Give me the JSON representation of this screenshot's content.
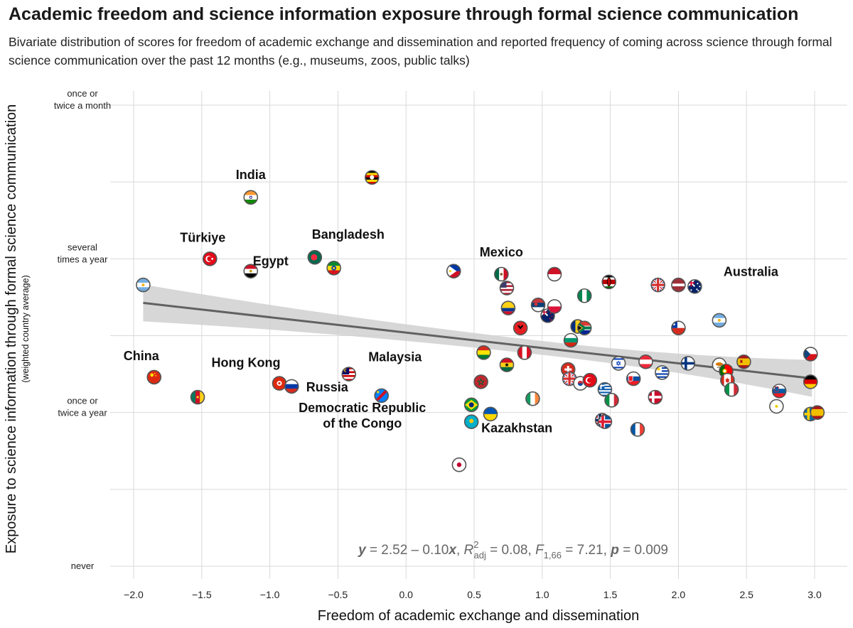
{
  "header": {
    "title": "Academic freedom and science information exposure through formal science communication",
    "subtitle": "Bivariate distribution of scores for freedom of academic exchange and dissemination and reported frequency of coming across science through formal science communication over the past 12 months (e.g., museums, zoos, public talks)"
  },
  "chart_data": {
    "type": "scatter",
    "title": "Academic freedom and science information exposure through formal science communication",
    "xlabel": "Freedom of academic exchange and dissemination",
    "ylabel": "Exposure to science information through formal science communication",
    "ylabel_sub": "(weighted country average)",
    "xlim": [
      -2.2,
      3.2
    ],
    "ylim": [
      0.9,
      4.1
    ],
    "x_ticks": [
      -2.0,
      -1.5,
      -1.0,
      -0.5,
      0.0,
      0.5,
      1.0,
      1.5,
      2.0,
      2.5,
      3.0
    ],
    "x_tick_labels": [
      "−2.0",
      "−1.5",
      "−1.0",
      "−0.5",
      "0.0",
      "0.5",
      "1.0",
      "1.5",
      "2.0",
      "2.5",
      "3.0"
    ],
    "y_ticks": [
      {
        "value": 1,
        "label": [
          "never"
        ]
      },
      {
        "value": 2,
        "label": [
          "once or",
          "twice a year"
        ]
      },
      {
        "value": 3,
        "label": [
          "several",
          "times a year"
        ]
      },
      {
        "value": 4,
        "label": [
          "once or",
          "twice a month"
        ]
      }
    ],
    "y_minor_gridlines": [
      1.5,
      2.5,
      3.5
    ],
    "grid": true,
    "regression": {
      "intercept": 2.52,
      "slope": -0.1,
      "x_range": [
        -1.93,
        2.98
      ],
      "ci_halfwidth_ends": 0.12,
      "ci_halfwidth_mid": 0.045,
      "mid_x": 1.05
    },
    "equation": {
      "y": "y",
      "eq1": " = 2.52 – 0.10",
      "x": "x",
      "comma1": ", ",
      "R": "R",
      "R_sup": "2",
      "R_sub": "adj",
      "eq2": " = 0.08, ",
      "F": "F",
      "F_sub": "1,66",
      "eq3": " = 7.21, ",
      "p": "p",
      "eq4": " = 0.009"
    },
    "points": [
      {
        "x": -1.93,
        "y": 2.83,
        "flag": "argentina",
        "label": ""
      },
      {
        "x": -1.85,
        "y": 2.23,
        "flag": "china",
        "label": "China"
      },
      {
        "x": -1.53,
        "y": 2.1,
        "flag": "cameroon",
        "label": ""
      },
      {
        "x": -1.44,
        "y": 3.0,
        "flag": "turkiye",
        "label": "Türkiye"
      },
      {
        "x": -1.14,
        "y": 3.4,
        "flag": "india",
        "label": "India"
      },
      {
        "x": -1.14,
        "y": 2.92,
        "flag": "egypt",
        "label": "Egypt"
      },
      {
        "x": -0.93,
        "y": 2.19,
        "flag": "hongkong",
        "label": "Hong Kong"
      },
      {
        "x": -0.84,
        "y": 2.17,
        "flag": "russia",
        "label": "Russia"
      },
      {
        "x": -0.67,
        "y": 3.01,
        "flag": "bangladesh",
        "label": "Bangladesh"
      },
      {
        "x": -0.53,
        "y": 2.94,
        "flag": "ethiopia",
        "label": ""
      },
      {
        "x": -0.42,
        "y": 2.25,
        "flag": "malaysia",
        "label": "Malaysia"
      },
      {
        "x": -0.25,
        "y": 3.53,
        "flag": "uganda",
        "label": ""
      },
      {
        "x": -0.18,
        "y": 2.11,
        "flag": "drc",
        "label": "Democratic Republic of the Congo"
      },
      {
        "x": 0.35,
        "y": 2.92,
        "flag": "philippines",
        "label": ""
      },
      {
        "x": 0.39,
        "y": 1.66,
        "flag": "japan",
        "label": ""
      },
      {
        "x": 0.48,
        "y": 2.05,
        "flag": "brazil",
        "label": ""
      },
      {
        "x": 0.48,
        "y": 1.94,
        "flag": "kazakhstan",
        "label": "Kazakhstan"
      },
      {
        "x": 0.55,
        "y": 2.2,
        "flag": "morocco",
        "label": ""
      },
      {
        "x": 0.57,
        "y": 2.39,
        "flag": "bolivia",
        "label": ""
      },
      {
        "x": 0.62,
        "y": 1.99,
        "flag": "ukraine",
        "label": ""
      },
      {
        "x": 0.7,
        "y": 2.9,
        "flag": "mexico",
        "label": "Mexico"
      },
      {
        "x": 0.74,
        "y": 2.81,
        "flag": "usa",
        "label": ""
      },
      {
        "x": 0.74,
        "y": 2.31,
        "flag": "ghana",
        "label": ""
      },
      {
        "x": 0.75,
        "y": 2.68,
        "flag": "colombia",
        "label": ""
      },
      {
        "x": 0.84,
        "y": 2.55,
        "flag": "albania",
        "label": ""
      },
      {
        "x": 0.87,
        "y": 2.39,
        "flag": "peru",
        "label": ""
      },
      {
        "x": 0.93,
        "y": 2.09,
        "flag": "ireland",
        "label": ""
      },
      {
        "x": 0.97,
        "y": 2.7,
        "flag": "serbia",
        "label": ""
      },
      {
        "x": 1.04,
        "y": 2.63,
        "flag": "newzealand",
        "label": ""
      },
      {
        "x": 1.09,
        "y": 2.9,
        "flag": "indonesia",
        "label": ""
      },
      {
        "x": 1.09,
        "y": 2.69,
        "flag": "poland",
        "label": ""
      },
      {
        "x": 1.19,
        "y": 2.28,
        "flag": "switzerland",
        "label": ""
      },
      {
        "x": 1.2,
        "y": 2.22,
        "flag": "uk",
        "label": ""
      },
      {
        "x": 1.21,
        "y": 2.47,
        "flag": "bulgaria",
        "label": ""
      },
      {
        "x": 1.26,
        "y": 2.56,
        "flag": "romania",
        "label": ""
      },
      {
        "x": 1.28,
        "y": 2.19,
        "flag": "southkorea",
        "label": ""
      },
      {
        "x": 1.31,
        "y": 2.55,
        "flag": "southafrica",
        "label": ""
      },
      {
        "x": 1.31,
        "y": 2.76,
        "flag": "nigeria",
        "label": ""
      },
      {
        "x": 1.35,
        "y": 2.21,
        "flag": "turkey2",
        "label": ""
      },
      {
        "x": 1.44,
        "y": 1.95,
        "flag": "norway",
        "label": ""
      },
      {
        "x": 1.46,
        "y": 1.94,
        "flag": "iceland",
        "label": ""
      },
      {
        "x": 1.46,
        "y": 2.15,
        "flag": "greece",
        "label": ""
      },
      {
        "x": 1.49,
        "y": 2.85,
        "flag": "kenya",
        "label": ""
      },
      {
        "x": 1.51,
        "y": 2.08,
        "flag": "italy2",
        "label": ""
      },
      {
        "x": 1.56,
        "y": 2.32,
        "flag": "israel",
        "label": ""
      },
      {
        "x": 1.67,
        "y": 2.22,
        "flag": "slovakia",
        "label": ""
      },
      {
        "x": 1.7,
        "y": 1.89,
        "flag": "france",
        "label": ""
      },
      {
        "x": 1.76,
        "y": 2.33,
        "flag": "austria",
        "label": ""
      },
      {
        "x": 1.83,
        "y": 2.1,
        "flag": "denmark",
        "label": ""
      },
      {
        "x": 1.85,
        "y": 2.83,
        "flag": "uk2",
        "label": ""
      },
      {
        "x": 1.88,
        "y": 2.26,
        "flag": "uruguay",
        "label": ""
      },
      {
        "x": 2.0,
        "y": 2.83,
        "flag": "latvia",
        "label": ""
      },
      {
        "x": 2.0,
        "y": 2.55,
        "flag": "chile",
        "label": ""
      },
      {
        "x": 2.07,
        "y": 2.32,
        "flag": "finland",
        "label": ""
      },
      {
        "x": 2.12,
        "y": 2.82,
        "flag": "australia",
        "label": "Australia"
      },
      {
        "x": 2.3,
        "y": 2.6,
        "flag": "argentina2",
        "label": ""
      },
      {
        "x": 2.3,
        "y": 2.31,
        "flag": "cyprus",
        "label": ""
      },
      {
        "x": 2.35,
        "y": 2.27,
        "flag": "portugal",
        "label": ""
      },
      {
        "x": 2.36,
        "y": 2.21,
        "flag": "canada",
        "label": ""
      },
      {
        "x": 2.39,
        "y": 2.15,
        "flag": "italy",
        "label": ""
      },
      {
        "x": 2.48,
        "y": 2.33,
        "flag": "spain",
        "label": ""
      },
      {
        "x": 2.72,
        "y": 2.04,
        "flag": "vatican",
        "label": ""
      },
      {
        "x": 2.74,
        "y": 2.14,
        "flag": "slovenia",
        "label": ""
      },
      {
        "x": 2.97,
        "y": 2.38,
        "flag": "czech",
        "label": ""
      },
      {
        "x": 2.97,
        "y": 2.2,
        "flag": "germany",
        "label": ""
      },
      {
        "x": 2.97,
        "y": 1.99,
        "flag": "sweden",
        "label": ""
      },
      {
        "x": 3.02,
        "y": 2.0,
        "flag": "spain2",
        "label": ""
      }
    ]
  },
  "colors": {
    "grid": "#d9d9d9",
    "regression_line": "#616161",
    "ci_band": "#d0d0d0",
    "point_outline": "#555555"
  }
}
